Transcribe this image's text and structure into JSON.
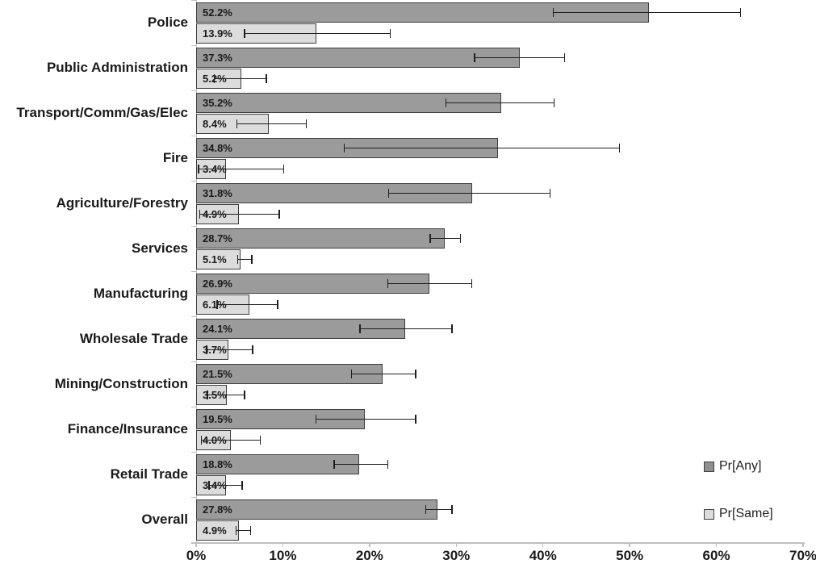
{
  "chart_data": {
    "type": "bar",
    "orientation": "horizontal",
    "title": "",
    "xlabel": "",
    "ylabel": "",
    "xlim": [
      0,
      70
    ],
    "x_tick_labels": [
      "0%",
      "10%",
      "20%",
      "30%",
      "40%",
      "50%",
      "60%",
      "70%"
    ],
    "grid": false,
    "legend_position": "right-bottom",
    "legend": [
      {
        "name": "Pr[Any]",
        "fill": "#8f8f8f"
      },
      {
        "name": "Pr[Same]",
        "fill": "#dcdcdc"
      }
    ],
    "categories": [
      "Police",
      "Public Administration",
      "Transport/Comm/Gas/Elec",
      "Fire",
      "Agriculture/Forestry",
      "Services",
      "Manufacturing",
      "Wholesale Trade",
      "Mining/Construction",
      "Finance/Insurance",
      "Retail Trade",
      "Overall"
    ],
    "series": [
      {
        "name": "Pr[Any]",
        "fill": "#9b9b9b",
        "values": [
          52.2,
          37.3,
          35.2,
          34.8,
          31.8,
          28.7,
          26.9,
          24.1,
          21.5,
          19.5,
          18.8,
          27.8
        ],
        "labels": [
          "52.2%",
          "37.3%",
          "35.2%",
          "34.8%",
          "31.8%",
          "28.7%",
          "26.9%",
          "24.1%",
          "21.5%",
          "19.5%",
          "18.8%",
          "27.8%"
        ],
        "err_lo": [
          41.2,
          32.1,
          28.8,
          17.1,
          22.2,
          27.0,
          22.1,
          18.9,
          17.9,
          13.8,
          15.9,
          26.5
        ],
        "err_hi": [
          62.8,
          42.5,
          41.3,
          48.8,
          40.8,
          30.5,
          31.8,
          29.5,
          25.3,
          25.3,
          22.1,
          29.5
        ]
      },
      {
        "name": "Pr[Same]",
        "fill": "#dcdcdc",
        "values": [
          13.9,
          5.2,
          8.4,
          3.4,
          4.9,
          5.1,
          6.1,
          3.7,
          3.5,
          4.0,
          3.4,
          4.9
        ],
        "labels": [
          "13.9%",
          "5.2%",
          "8.4%",
          "3.4%",
          "4.9%",
          "5.1%",
          "6.1%",
          "3.7%",
          "3.5%",
          "4.0%",
          "3.4%",
          "4.9%"
        ],
        "err_lo": [
          5.6,
          2.1,
          4.7,
          0.3,
          0.4,
          4.8,
          2.4,
          1.2,
          1.3,
          0.6,
          1.5,
          4.6
        ],
        "err_hi": [
          22.4,
          8.1,
          12.7,
          10.1,
          9.6,
          6.4,
          9.4,
          6.5,
          5.6,
          7.4,
          5.3,
          6.3
        ]
      }
    ],
    "colors": {
      "bar_border": "#3e3e3e",
      "error_bar": "#1f1f1f",
      "axis": "#bfbfbf",
      "text": "#1a1a1a",
      "background": "#ffffff"
    }
  }
}
